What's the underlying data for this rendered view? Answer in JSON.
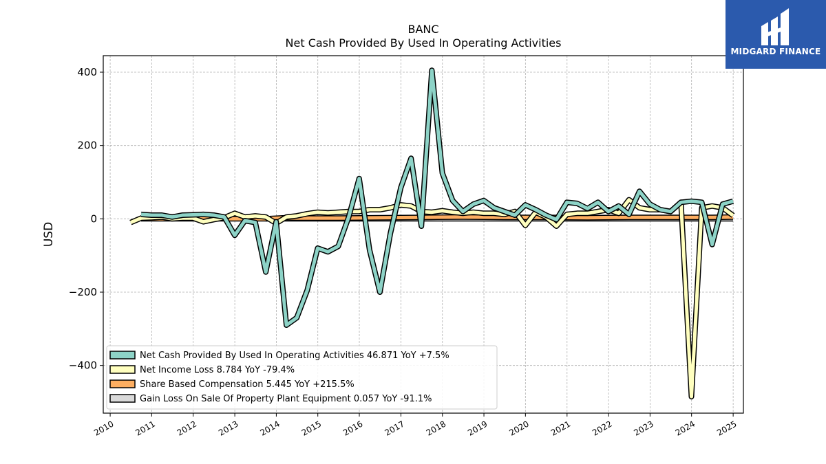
{
  "branding": {
    "logo_text": "MIDGARD FINANCE"
  },
  "chart_data": {
    "type": "line",
    "title": "BANC",
    "subtitle": "Net Cash Provided By Used In Operating Activities",
    "ylabel": "USD",
    "xlabel": "",
    "xlim": [
      "2009-11-01",
      "2025-04-01"
    ],
    "ylim": [
      -530,
      445
    ],
    "yticks": [
      400,
      200,
      0,
      -200,
      -400
    ],
    "ytick_labels": [
      "400",
      "200",
      "0",
      "−200",
      "−400"
    ],
    "xticks": [
      "2010",
      "2011",
      "2012",
      "2013",
      "2014",
      "2015",
      "2016",
      "2017",
      "2018",
      "2019",
      "2020",
      "2021",
      "2022",
      "2023",
      "2024",
      "2025"
    ],
    "grid": true,
    "legend_position": "lower-left",
    "colors": {
      "ocf": "#8dd3c7",
      "net_income": "#ffffbf",
      "sbc": "#fdae61",
      "gain_loss": "#d9d9d9",
      "outline": "#000000",
      "grid": "#b0b0b0"
    },
    "series": [
      {
        "key": "ocf",
        "name": "Net Cash Provided By Used In Operating Activities",
        "legend_label": "Net Cash Provided By Used In Operating Activities  46.871 YoY +7.5%",
        "points": [
          [
            "2010-09-30",
            12
          ],
          [
            "2010-12-31",
            10
          ],
          [
            "2011-03-31",
            10
          ],
          [
            "2011-06-30",
            5
          ],
          [
            "2011-09-30",
            10
          ],
          [
            "2011-12-31",
            11
          ],
          [
            "2012-03-31",
            12
          ],
          [
            "2012-06-30",
            10
          ],
          [
            "2012-09-30",
            5
          ],
          [
            "2012-12-31",
            -45
          ],
          [
            "2013-03-31",
            -5
          ],
          [
            "2013-06-30",
            -10
          ],
          [
            "2013-09-30",
            -145
          ],
          [
            "2013-12-31",
            -8
          ],
          [
            "2014-03-31",
            -290
          ],
          [
            "2014-06-30",
            -270
          ],
          [
            "2014-09-30",
            -195
          ],
          [
            "2014-12-31",
            -80
          ],
          [
            "2015-03-31",
            -90
          ],
          [
            "2015-06-30",
            -75
          ],
          [
            "2015-09-30",
            5
          ],
          [
            "2015-12-31",
            110
          ],
          [
            "2016-03-31",
            -85
          ],
          [
            "2016-06-30",
            -200
          ],
          [
            "2016-09-30",
            -40
          ],
          [
            "2016-12-31",
            85
          ],
          [
            "2017-03-31",
            165
          ],
          [
            "2017-06-30",
            -20
          ],
          [
            "2017-09-30",
            405
          ],
          [
            "2017-12-31",
            125
          ],
          [
            "2018-03-31",
            50
          ],
          [
            "2018-06-30",
            20
          ],
          [
            "2018-09-30",
            40
          ],
          [
            "2018-12-31",
            50
          ],
          [
            "2019-03-31",
            30
          ],
          [
            "2019-06-30",
            20
          ],
          [
            "2019-09-30",
            10
          ],
          [
            "2019-12-31",
            38
          ],
          [
            "2020-03-31",
            25
          ],
          [
            "2020-06-30",
            10
          ],
          [
            "2020-09-30",
            -2
          ],
          [
            "2020-12-31",
            45
          ],
          [
            "2021-03-31",
            42
          ],
          [
            "2021-06-30",
            28
          ],
          [
            "2021-09-30",
            45
          ],
          [
            "2021-12-31",
            20
          ],
          [
            "2022-03-31",
            35
          ],
          [
            "2022-06-30",
            12
          ],
          [
            "2022-09-30",
            75
          ],
          [
            "2022-12-31",
            40
          ],
          [
            "2023-03-31",
            25
          ],
          [
            "2023-06-30",
            20
          ],
          [
            "2023-09-30",
            45
          ],
          [
            "2023-12-31",
            48
          ],
          [
            "2024-03-31",
            45
          ],
          [
            "2024-06-30",
            -70
          ],
          [
            "2024-09-30",
            40
          ],
          [
            "2024-12-31",
            48
          ]
        ]
      },
      {
        "key": "net_income",
        "name": "Net Income Loss",
        "legend_label": "Net Income Loss  8.784 YoY -79.4%",
        "points": [
          [
            "2010-06-30",
            -10
          ],
          [
            "2010-09-30",
            2
          ],
          [
            "2010-12-31",
            3
          ],
          [
            "2011-03-31",
            5
          ],
          [
            "2011-06-30",
            0
          ],
          [
            "2011-09-30",
            2
          ],
          [
            "2011-12-31",
            2
          ],
          [
            "2012-03-31",
            -8
          ],
          [
            "2012-06-30",
            -2
          ],
          [
            "2012-09-30",
            3
          ],
          [
            "2012-12-31",
            15
          ],
          [
            "2013-03-31",
            5
          ],
          [
            "2013-06-30",
            8
          ],
          [
            "2013-09-30",
            5
          ],
          [
            "2013-12-31",
            -12
          ],
          [
            "2014-03-31",
            5
          ],
          [
            "2014-06-30",
            8
          ],
          [
            "2014-09-30",
            14
          ],
          [
            "2014-12-31",
            18
          ],
          [
            "2015-03-31",
            16
          ],
          [
            "2015-06-30",
            18
          ],
          [
            "2015-09-30",
            20
          ],
          [
            "2015-12-31",
            20
          ],
          [
            "2016-03-31",
            25
          ],
          [
            "2016-06-30",
            25
          ],
          [
            "2016-09-30",
            30
          ],
          [
            "2016-12-31",
            38
          ],
          [
            "2017-03-31",
            35
          ],
          [
            "2017-06-30",
            20
          ],
          [
            "2017-09-30",
            18
          ],
          [
            "2017-12-31",
            22
          ],
          [
            "2018-03-31",
            18
          ],
          [
            "2018-06-30",
            15
          ],
          [
            "2018-09-30",
            18
          ],
          [
            "2018-12-31",
            15
          ],
          [
            "2019-03-31",
            15
          ],
          [
            "2019-06-30",
            12
          ],
          [
            "2019-09-30",
            20
          ],
          [
            "2019-12-31",
            -18
          ],
          [
            "2020-03-31",
            18
          ],
          [
            "2020-06-30",
            5
          ],
          [
            "2020-09-30",
            -20
          ],
          [
            "2020-12-31",
            12
          ],
          [
            "2021-03-31",
            15
          ],
          [
            "2021-06-30",
            15
          ],
          [
            "2021-09-30",
            20
          ],
          [
            "2021-12-31",
            25
          ],
          [
            "2022-03-31",
            15
          ],
          [
            "2022-06-30",
            52
          ],
          [
            "2022-09-30",
            30
          ],
          [
            "2022-12-31",
            25
          ],
          [
            "2023-03-31",
            25
          ],
          [
            "2023-06-30",
            20
          ],
          [
            "2023-09-30",
            45
          ],
          [
            "2023-12-31",
            -485
          ],
          [
            "2024-03-31",
            30
          ],
          [
            "2024-06-30",
            35
          ],
          [
            "2024-09-30",
            30
          ],
          [
            "2024-12-31",
            9
          ]
        ]
      },
      {
        "key": "sbc",
        "name": "Share Based Compensation",
        "legend_label": "Share Based Compensation  5.445 YoY +215.5%",
        "points": [
          [
            "2010-09-30",
            0
          ],
          [
            "2011-06-30",
            0
          ],
          [
            "2012-06-30",
            0
          ],
          [
            "2013-09-30",
            0
          ],
          [
            "2014-03-31",
            3
          ],
          [
            "2014-06-30",
            2
          ],
          [
            "2015-06-30",
            2
          ],
          [
            "2016-06-30",
            3
          ],
          [
            "2017-06-30",
            4
          ],
          [
            "2018-06-30",
            5
          ],
          [
            "2019-06-30",
            4
          ],
          [
            "2020-06-30",
            4
          ],
          [
            "2021-06-30",
            3
          ],
          [
            "2022-06-30",
            4
          ],
          [
            "2023-06-30",
            4
          ],
          [
            "2024-06-30",
            4
          ],
          [
            "2024-12-31",
            5
          ]
        ]
      },
      {
        "key": "gain_loss",
        "name": "Gain Loss On Sale Of Property Plant Equipment",
        "legend_label": "Gain Loss On Sale Of Property Plant Equipment  0.057 YoY -91.1%",
        "points": [
          [
            "2013-09-30",
            0
          ],
          [
            "2014-06-30",
            0
          ],
          [
            "2015-06-30",
            0
          ],
          [
            "2016-06-30",
            0
          ],
          [
            "2017-06-30",
            0
          ],
          [
            "2018-06-30",
            0
          ],
          [
            "2019-06-30",
            0
          ],
          [
            "2020-06-30",
            0
          ],
          [
            "2021-06-30",
            0
          ],
          [
            "2022-06-30",
            0
          ],
          [
            "2023-06-30",
            0
          ],
          [
            "2024-06-30",
            0
          ],
          [
            "2024-12-31",
            0
          ]
        ]
      }
    ]
  }
}
